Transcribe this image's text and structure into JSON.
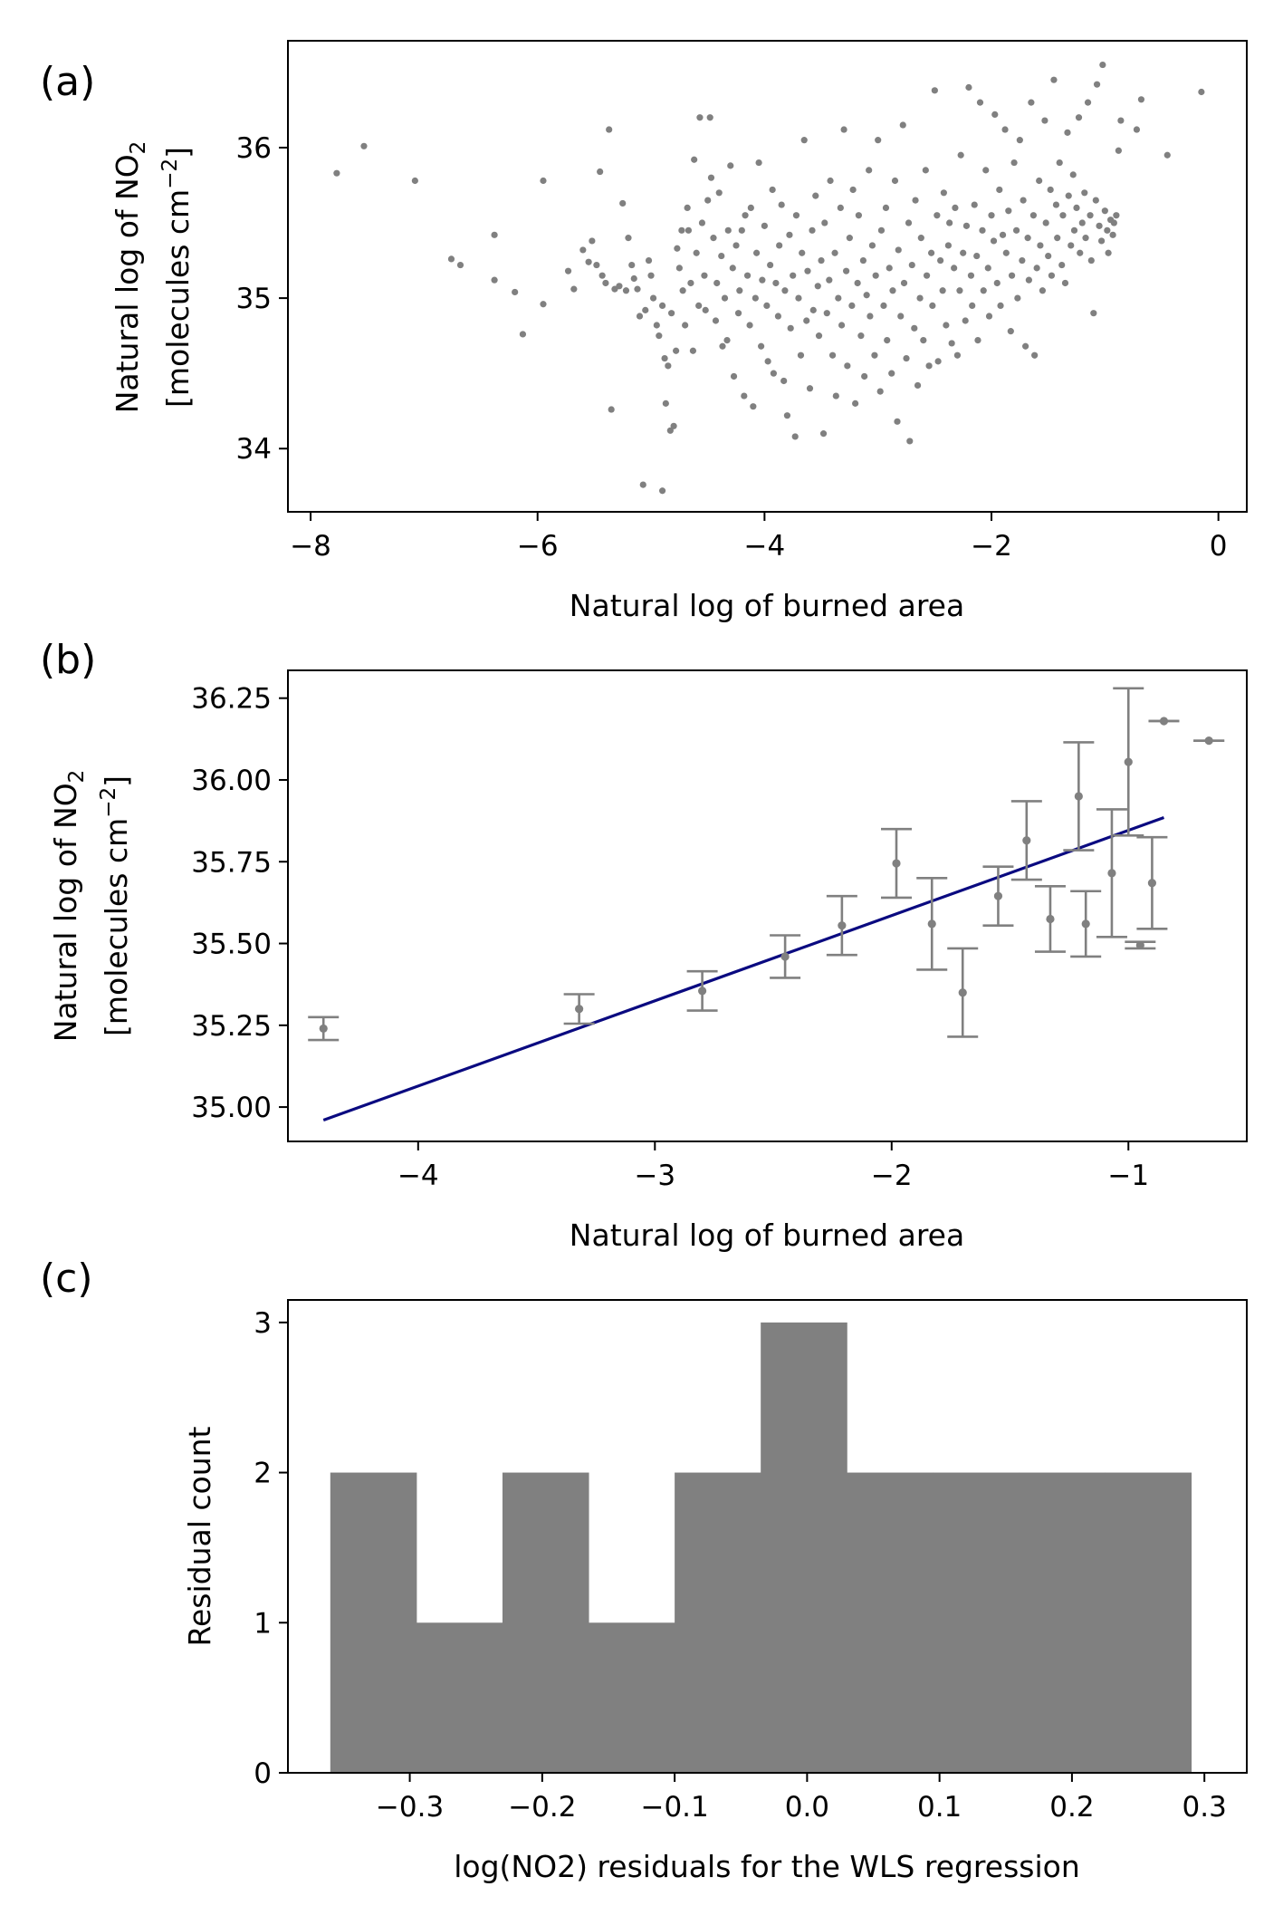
{
  "chart_data": [
    {
      "panel": "(a)",
      "type": "scatter",
      "xlabel": "Natural log of burned area",
      "ylabel_line1": "Natural log of NO",
      "ylabel_sub": "2",
      "ylabel_line2": "[molecules cm",
      "ylabel_sup": "−2",
      "ylabel_close": "]",
      "xlim": [
        -8.2,
        0.25
      ],
      "ylim": [
        33.58,
        36.71
      ],
      "xticks": [
        -8,
        -6,
        -4,
        -2,
        0
      ],
      "xtick_labels": [
        "−8",
        "−6",
        "−4",
        "−2",
        "0"
      ],
      "yticks": [
        34,
        35,
        36
      ],
      "ytick_labels": [
        "34",
        "35",
        "36"
      ],
      "color": "#808080",
      "points": [
        [
          -7.77,
          35.83
        ],
        [
          -7.53,
          36.01
        ],
        [
          -7.08,
          35.78
        ],
        [
          -6.76,
          35.26
        ],
        [
          -6.68,
          35.22
        ],
        [
          -6.38,
          35.42
        ],
        [
          -6.38,
          35.12
        ],
        [
          -6.2,
          35.04
        ],
        [
          -6.13,
          34.76
        ],
        [
          -5.95,
          35.78
        ],
        [
          -5.95,
          34.96
        ],
        [
          -5.73,
          35.18
        ],
        [
          -5.68,
          35.06
        ],
        [
          -5.6,
          35.32
        ],
        [
          -5.55,
          35.24
        ],
        [
          -5.52,
          35.38
        ],
        [
          -5.48,
          35.22
        ],
        [
          -5.45,
          35.84
        ],
        [
          -5.43,
          35.15
        ],
        [
          -5.4,
          35.1
        ],
        [
          -5.37,
          36.12
        ],
        [
          -5.35,
          34.26
        ],
        [
          -5.32,
          35.06
        ],
        [
          -5.28,
          35.08
        ],
        [
          -5.25,
          35.63
        ],
        [
          -5.22,
          35.05
        ],
        [
          -5.2,
          35.4
        ],
        [
          -5.17,
          35.22
        ],
        [
          -5.15,
          35.13
        ],
        [
          -5.12,
          35.06
        ],
        [
          -5.1,
          34.88
        ],
        [
          -5.07,
          33.76
        ],
        [
          -5.05,
          34.92
        ],
        [
          -5.02,
          35.25
        ],
        [
          -5.0,
          35.15
        ],
        [
          -4.98,
          35.0
        ],
        [
          -4.95,
          34.82
        ],
        [
          -4.93,
          34.75
        ],
        [
          -4.9,
          33.72
        ],
        [
          -4.9,
          34.95
        ],
        [
          -4.88,
          34.6
        ],
        [
          -4.87,
          34.3
        ],
        [
          -4.85,
          34.55
        ],
        [
          -4.83,
          34.12
        ],
        [
          -4.82,
          34.9
        ],
        [
          -4.8,
          34.15
        ],
        [
          -4.78,
          34.65
        ],
        [
          -4.77,
          35.33
        ],
        [
          -4.75,
          35.2
        ],
        [
          -4.73,
          35.45
        ],
        [
          -4.72,
          35.05
        ],
        [
          -4.7,
          34.82
        ],
        [
          -4.68,
          35.6
        ],
        [
          -4.67,
          35.45
        ],
        [
          -4.65,
          35.1
        ],
        [
          -4.63,
          34.65
        ],
        [
          -4.62,
          35.92
        ],
        [
          -4.6,
          35.3
        ],
        [
          -4.58,
          34.95
        ],
        [
          -4.57,
          36.2
        ],
        [
          -4.55,
          35.5
        ],
        [
          -4.53,
          35.15
        ],
        [
          -4.52,
          34.92
        ],
        [
          -4.5,
          35.65
        ],
        [
          -4.48,
          36.2
        ],
        [
          -4.47,
          35.8
        ],
        [
          -4.45,
          35.4
        ],
        [
          -4.43,
          34.85
        ],
        [
          -4.42,
          35.1
        ],
        [
          -4.4,
          35.7
        ],
        [
          -4.38,
          35.28
        ],
        [
          -4.37,
          34.68
        ],
        [
          -4.35,
          35.0
        ],
        [
          -4.33,
          34.72
        ],
        [
          -4.32,
          35.45
        ],
        [
          -4.3,
          35.88
        ],
        [
          -4.28,
          35.2
        ],
        [
          -4.27,
          34.48
        ],
        [
          -4.25,
          35.35
        ],
        [
          -4.23,
          34.9
        ],
        [
          -4.22,
          35.05
        ],
        [
          -4.2,
          35.45
        ],
        [
          -4.18,
          34.35
        ],
        [
          -4.17,
          35.55
        ],
        [
          -4.15,
          35.15
        ],
        [
          -4.13,
          34.82
        ],
        [
          -4.12,
          35.6
        ],
        [
          -4.1,
          34.28
        ],
        [
          -4.08,
          35.0
        ],
        [
          -4.07,
          35.3
        ],
        [
          -4.05,
          35.9
        ],
        [
          -4.03,
          34.68
        ],
        [
          -4.02,
          35.12
        ],
        [
          -4.0,
          35.48
        ],
        [
          -3.98,
          34.95
        ],
        [
          -3.97,
          34.58
        ],
        [
          -3.95,
          35.22
        ],
        [
          -3.93,
          35.72
        ],
        [
          -3.92,
          34.5
        ],
        [
          -3.9,
          35.1
        ],
        [
          -3.88,
          34.88
        ],
        [
          -3.87,
          35.35
        ],
        [
          -3.85,
          35.62
        ],
        [
          -3.83,
          34.45
        ],
        [
          -3.82,
          35.05
        ],
        [
          -3.8,
          34.22
        ],
        [
          -3.78,
          35.42
        ],
        [
          -3.77,
          34.8
        ],
        [
          -3.75,
          35.15
        ],
        [
          -3.73,
          34.08
        ],
        [
          -3.72,
          35.55
        ],
        [
          -3.7,
          35.0
        ],
        [
          -3.68,
          34.62
        ],
        [
          -3.67,
          35.3
        ],
        [
          -3.65,
          36.05
        ],
        [
          -3.63,
          34.85
        ],
        [
          -3.62,
          35.18
        ],
        [
          -3.6,
          34.4
        ],
        [
          -3.58,
          35.45
        ],
        [
          -3.57,
          34.92
        ],
        [
          -3.55,
          35.68
        ],
        [
          -3.53,
          35.08
        ],
        [
          -3.52,
          34.75
        ],
        [
          -3.5,
          35.25
        ],
        [
          -3.48,
          34.1
        ],
        [
          -3.47,
          35.5
        ],
        [
          -3.45,
          34.9
        ],
        [
          -3.43,
          35.12
        ],
        [
          -3.42,
          35.78
        ],
        [
          -3.4,
          34.62
        ],
        [
          -3.38,
          35.3
        ],
        [
          -3.37,
          34.35
        ],
        [
          -3.35,
          35.0
        ],
        [
          -3.33,
          35.6
        ],
        [
          -3.32,
          34.82
        ],
        [
          -3.3,
          36.12
        ],
        [
          -3.28,
          35.18
        ],
        [
          -3.27,
          34.55
        ],
        [
          -3.25,
          35.4
        ],
        [
          -3.23,
          34.95
        ],
        [
          -3.22,
          35.72
        ],
        [
          -3.2,
          34.3
        ],
        [
          -3.18,
          35.1
        ],
        [
          -3.17,
          35.55
        ],
        [
          -3.15,
          34.75
        ],
        [
          -3.13,
          35.25
        ],
        [
          -3.12,
          34.48
        ],
        [
          -3.1,
          35.02
        ],
        [
          -3.08,
          35.85
        ],
        [
          -3.07,
          34.88
        ],
        [
          -3.05,
          35.35
        ],
        [
          -3.03,
          34.62
        ],
        [
          -3.02,
          35.15
        ],
        [
          -3.0,
          36.05
        ],
        [
          -2.98,
          34.38
        ],
        [
          -2.97,
          35.45
        ],
        [
          -2.95,
          34.95
        ],
        [
          -2.93,
          35.6
        ],
        [
          -2.92,
          34.72
        ],
        [
          -2.9,
          35.2
        ],
        [
          -2.88,
          34.5
        ],
        [
          -2.87,
          35.05
        ],
        [
          -2.85,
          35.78
        ],
        [
          -2.83,
          34.18
        ],
        [
          -2.82,
          35.32
        ],
        [
          -2.8,
          34.88
        ],
        [
          -2.78,
          36.15
        ],
        [
          -2.77,
          35.1
        ],
        [
          -2.75,
          34.6
        ],
        [
          -2.73,
          35.5
        ],
        [
          -2.72,
          34.05
        ],
        [
          -2.7,
          35.22
        ],
        [
          -2.68,
          34.8
        ],
        [
          -2.67,
          35.65
        ],
        [
          -2.65,
          34.42
        ],
        [
          -2.63,
          35.0
        ],
        [
          -2.62,
          35.4
        ],
        [
          -2.6,
          34.72
        ],
        [
          -2.58,
          35.85
        ],
        [
          -2.57,
          35.15
        ],
        [
          -2.55,
          34.55
        ],
        [
          -2.53,
          35.3
        ],
        [
          -2.52,
          34.95
        ],
        [
          -2.5,
          36.38
        ],
        [
          -2.48,
          35.55
        ],
        [
          -2.47,
          34.58
        ],
        [
          -2.45,
          35.25
        ],
        [
          -2.43,
          35.05
        ],
        [
          -2.42,
          35.7
        ],
        [
          -2.4,
          34.82
        ],
        [
          -2.38,
          35.35
        ],
        [
          -2.37,
          35.5
        ],
        [
          -2.35,
          34.7
        ],
        [
          -2.33,
          35.2
        ],
        [
          -2.32,
          35.6
        ],
        [
          -2.3,
          34.62
        ],
        [
          -2.28,
          35.05
        ],
        [
          -2.27,
          35.95
        ],
        [
          -2.25,
          35.3
        ],
        [
          -2.23,
          34.85
        ],
        [
          -2.22,
          35.48
        ],
        [
          -2.2,
          36.4
        ],
        [
          -2.18,
          35.15
        ],
        [
          -2.17,
          34.95
        ],
        [
          -2.15,
          35.62
        ],
        [
          -2.13,
          35.28
        ],
        [
          -2.12,
          34.72
        ],
        [
          -2.1,
          36.3
        ],
        [
          -2.08,
          35.45
        ],
        [
          -2.07,
          35.05
        ],
        [
          -2.05,
          35.85
        ],
        [
          -2.03,
          35.2
        ],
        [
          -2.02,
          34.88
        ],
        [
          -2.0,
          35.55
        ],
        [
          -1.98,
          35.38
        ],
        [
          -1.97,
          36.22
        ],
        [
          -1.95,
          35.1
        ],
        [
          -1.93,
          35.72
        ],
        [
          -1.92,
          34.95
        ],
        [
          -1.9,
          35.42
        ],
        [
          -1.88,
          36.12
        ],
        [
          -1.87,
          35.3
        ],
        [
          -1.85,
          35.58
        ],
        [
          -1.83,
          34.78
        ],
        [
          -1.82,
          35.15
        ],
        [
          -1.8,
          35.9
        ],
        [
          -1.78,
          35.45
        ],
        [
          -1.77,
          35.0
        ],
        [
          -1.75,
          36.05
        ],
        [
          -1.73,
          35.25
        ],
        [
          -1.72,
          35.65
        ],
        [
          -1.7,
          34.68
        ],
        [
          -1.68,
          35.4
        ],
        [
          -1.67,
          35.12
        ],
        [
          -1.65,
          36.3
        ],
        [
          -1.63,
          35.55
        ],
        [
          -1.62,
          34.62
        ],
        [
          -1.6,
          35.2
        ],
        [
          -1.58,
          35.78
        ],
        [
          -1.57,
          35.35
        ],
        [
          -1.55,
          35.05
        ],
        [
          -1.53,
          36.18
        ],
        [
          -1.52,
          35.5
        ],
        [
          -1.5,
          35.28
        ],
        [
          -1.48,
          35.72
        ],
        [
          -1.47,
          35.15
        ],
        [
          -1.45,
          36.45
        ],
        [
          -1.43,
          35.62
        ],
        [
          -1.42,
          35.4
        ],
        [
          -1.4,
          35.9
        ],
        [
          -1.38,
          35.22
        ],
        [
          -1.37,
          35.55
        ],
        [
          -1.35,
          35.1
        ],
        [
          -1.33,
          36.1
        ],
        [
          -1.32,
          35.68
        ],
        [
          -1.3,
          35.35
        ],
        [
          -1.28,
          35.82
        ],
        [
          -1.27,
          35.45
        ],
        [
          -1.25,
          35.6
        ],
        [
          -1.23,
          36.2
        ],
        [
          -1.22,
          35.3
        ],
        [
          -1.2,
          35.5
        ],
        [
          -1.18,
          35.7
        ],
        [
          -1.17,
          35.4
        ],
        [
          -1.15,
          36.3
        ],
        [
          -1.13,
          35.55
        ],
        [
          -1.12,
          35.25
        ],
        [
          -1.1,
          34.9
        ],
        [
          -1.08,
          35.65
        ],
        [
          -1.07,
          36.42
        ],
        [
          -1.05,
          35.48
        ],
        [
          -1.03,
          35.38
        ],
        [
          -1.02,
          36.55
        ],
        [
          -1.0,
          35.58
        ],
        [
          -0.98,
          35.45
        ],
        [
          -0.97,
          35.3
        ],
        [
          -0.95,
          35.52
        ],
        [
          -0.93,
          35.42
        ],
        [
          -0.92,
          35.5
        ],
        [
          -0.9,
          35.55
        ],
        [
          -0.88,
          35.98
        ],
        [
          -0.86,
          36.18
        ],
        [
          -0.72,
          36.12
        ],
        [
          -0.68,
          36.32
        ],
        [
          -0.45,
          35.95
        ],
        [
          -0.15,
          36.37
        ]
      ]
    },
    {
      "panel": "(b)",
      "type": "scatter",
      "xlabel": "Natural log of burned area",
      "ylabel_line1": "Natural log of NO",
      "ylabel_sub": "2",
      "ylabel_line2": "[molecules cm",
      "ylabel_sup": "−2",
      "ylabel_close": "]",
      "xlim": [
        -4.55,
        -0.5
      ],
      "ylim": [
        34.895,
        36.335
      ],
      "xticks": [
        -4,
        -3,
        -2,
        -1
      ],
      "xtick_labels": [
        "−4",
        "−3",
        "−2",
        "−1"
      ],
      "yticks": [
        35.0,
        35.25,
        35.5,
        35.75,
        36.0,
        36.25
      ],
      "ytick_labels": [
        "35.00",
        "35.25",
        "35.50",
        "35.75",
        "36.00",
        "36.25"
      ],
      "point_color": "#808080",
      "fit_color": "#0a0a80",
      "points": [
        {
          "x": -4.4,
          "y": 35.24,
          "err": 0.035
        },
        {
          "x": -3.32,
          "y": 35.3,
          "err": 0.045
        },
        {
          "x": -2.8,
          "y": 35.355,
          "err": 0.06
        },
        {
          "x": -2.45,
          "y": 35.46,
          "err": 0.065
        },
        {
          "x": -2.21,
          "y": 35.555,
          "err": 0.09
        },
        {
          "x": -1.98,
          "y": 35.745,
          "err": 0.105
        },
        {
          "x": -1.83,
          "y": 35.56,
          "err": 0.14
        },
        {
          "x": -1.7,
          "y": 35.35,
          "err": 0.135
        },
        {
          "x": -1.55,
          "y": 35.645,
          "err": 0.09
        },
        {
          "x": -1.43,
          "y": 35.815,
          "err": 0.12
        },
        {
          "x": -1.33,
          "y": 35.575,
          "err": 0.1
        },
        {
          "x": -1.21,
          "y": 35.95,
          "err": 0.165
        },
        {
          "x": -1.18,
          "y": 35.56,
          "err": 0.1
        },
        {
          "x": -1.07,
          "y": 35.715,
          "err": 0.195
        },
        {
          "x": -1.0,
          "y": 36.055,
          "err": 0.225
        },
        {
          "x": -0.95,
          "y": 35.495,
          "err": 0.01
        },
        {
          "x": -0.9,
          "y": 35.685,
          "err": 0.14
        },
        {
          "x": -0.85,
          "y": 36.18,
          "err": 0.0
        },
        {
          "x": -0.66,
          "y": 36.12,
          "err": 0.0
        }
      ],
      "fit_line": {
        "x": [
          -4.4,
          -0.85
        ],
        "y": [
          34.96,
          35.885
        ]
      }
    },
    {
      "panel": "(c)",
      "type": "bar",
      "xlabel": "log(NO2) residuals for the WLS regression",
      "ylabel": "Residual count",
      "xlim": [
        -0.392,
        0.332
      ],
      "ylim": [
        0,
        3.15
      ],
      "xticks": [
        -0.3,
        -0.2,
        -0.1,
        0.0,
        0.1,
        0.2,
        0.3
      ],
      "xtick_labels": [
        "−0.3",
        "−0.2",
        "−0.1",
        "0.0",
        "0.1",
        "0.2",
        "0.3"
      ],
      "yticks": [
        0,
        1,
        2,
        3
      ],
      "ytick_labels": [
        "0",
        "1",
        "2",
        "3"
      ],
      "color": "#808080",
      "bin_edges": [
        -0.36,
        -0.295,
        -0.23,
        -0.165,
        -0.1,
        -0.035,
        0.03,
        0.095,
        0.16,
        0.225,
        0.29
      ],
      "counts": [
        2,
        1,
        2,
        1,
        2,
        3,
        2,
        2,
        2,
        2
      ]
    }
  ]
}
